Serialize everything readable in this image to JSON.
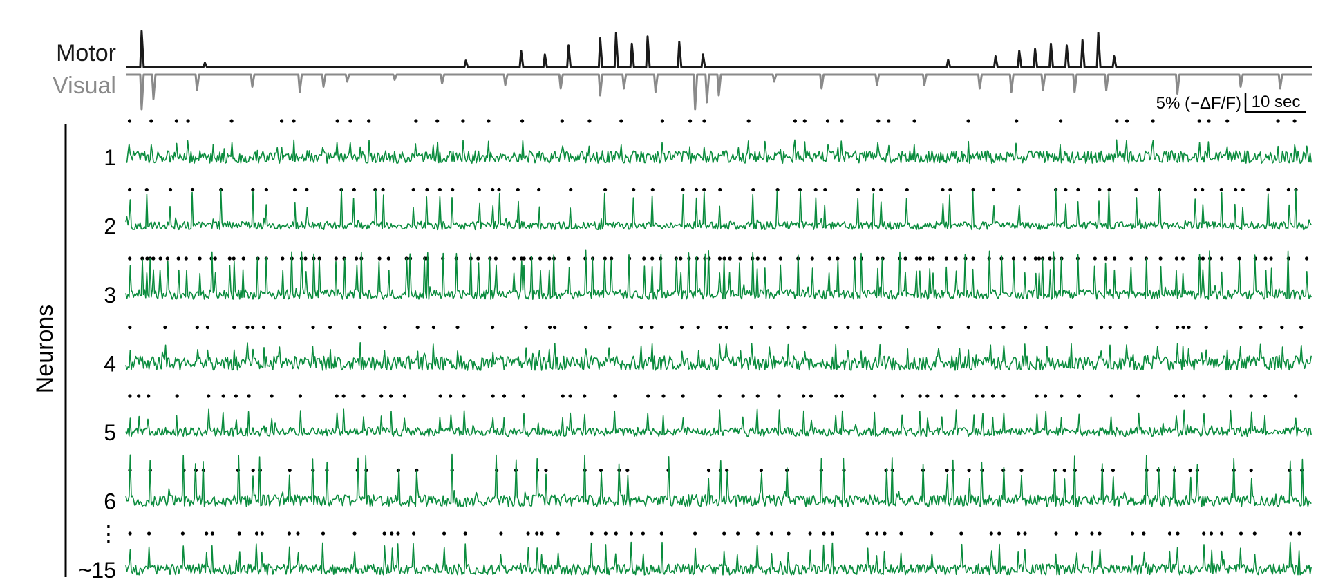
{
  "chart_data": {
    "type": "line",
    "behavior": {
      "motor": {
        "label": "Motor",
        "color": "#1a1a1a",
        "spikes": [
          {
            "t": 2,
            "a": 1.0
          },
          {
            "t": 10,
            "a": 0.12
          },
          {
            "t": 43,
            "a": 0.18
          },
          {
            "t": 50,
            "a": 0.45
          },
          {
            "t": 53,
            "a": 0.35
          },
          {
            "t": 56,
            "a": 0.6
          },
          {
            "t": 60,
            "a": 0.8
          },
          {
            "t": 62,
            "a": 0.95
          },
          {
            "t": 64,
            "a": 0.65
          },
          {
            "t": 66,
            "a": 0.85
          },
          {
            "t": 70,
            "a": 0.7
          },
          {
            "t": 73,
            "a": 0.35
          },
          {
            "t": 104,
            "a": 0.2
          },
          {
            "t": 110,
            "a": 0.3
          },
          {
            "t": 113,
            "a": 0.45
          },
          {
            "t": 115,
            "a": 0.5
          },
          {
            "t": 117,
            "a": 0.65
          },
          {
            "t": 119,
            "a": 0.6
          },
          {
            "t": 121,
            "a": 0.75
          },
          {
            "t": 123,
            "a": 0.95
          },
          {
            "t": 125,
            "a": 0.3
          }
        ]
      },
      "visual": {
        "label": "Visual",
        "color": "#8a8a8a",
        "deflections": [
          {
            "t": 2,
            "a": 1.0
          },
          {
            "t": 3.5,
            "a": 0.7
          },
          {
            "t": 9,
            "a": 0.45
          },
          {
            "t": 16,
            "a": 0.35
          },
          {
            "t": 22,
            "a": 0.5
          },
          {
            "t": 25,
            "a": 0.35
          },
          {
            "t": 28,
            "a": 0.2
          },
          {
            "t": 34,
            "a": 0.15
          },
          {
            "t": 40,
            "a": 0.25
          },
          {
            "t": 48,
            "a": 0.3
          },
          {
            "t": 55,
            "a": 0.4
          },
          {
            "t": 60,
            "a": 0.6
          },
          {
            "t": 63,
            "a": 0.4
          },
          {
            "t": 67,
            "a": 0.5
          },
          {
            "t": 72,
            "a": 1.0
          },
          {
            "t": 73.5,
            "a": 0.8
          },
          {
            "t": 75,
            "a": 0.6
          },
          {
            "t": 82,
            "a": 0.2
          },
          {
            "t": 88,
            "a": 0.4
          },
          {
            "t": 95,
            "a": 0.3
          },
          {
            "t": 101,
            "a": 0.3
          },
          {
            "t": 108,
            "a": 0.4
          },
          {
            "t": 112,
            "a": 0.5
          },
          {
            "t": 116,
            "a": 0.45
          },
          {
            "t": 120,
            "a": 0.5
          },
          {
            "t": 124,
            "a": 0.45
          },
          {
            "t": 133,
            "a": 0.55
          },
          {
            "t": 141,
            "a": 0.35
          },
          {
            "t": 146,
            "a": 0.4
          }
        ]
      }
    },
    "neurons": [
      {
        "label": "1",
        "seed": 11,
        "noise": 0.7,
        "spike_amp": 0.28,
        "event_rate": 38
      },
      {
        "label": "2",
        "seed": 23,
        "noise": 0.45,
        "spike_amp": 0.7,
        "event_rate": 58
      },
      {
        "label": "3",
        "seed": 37,
        "noise": 0.55,
        "spike_amp": 0.85,
        "event_rate": 120
      },
      {
        "label": "4",
        "seed": 41,
        "noise": 0.8,
        "spike_amp": 0.35,
        "event_rate": 62
      },
      {
        "label": "5",
        "seed": 53,
        "noise": 0.5,
        "spike_amp": 0.4,
        "event_rate": 52
      },
      {
        "label": "6",
        "seed": 67,
        "noise": 0.65,
        "spike_amp": 0.9,
        "event_rate": 48
      },
      {
        "label": "~15",
        "seed": 79,
        "noise": 0.6,
        "spike_amp": 0.5,
        "event_rate": 60
      }
    ],
    "ellipsis_label": "⋮",
    "neuron_color": "#0b8c3e",
    "event_dot_color": "#000000",
    "y_group_label": "Neurons",
    "scale_bar": {
      "y_label": "5% (−ΔF/F)",
      "y_value_percent": 5,
      "x_label": "10 sec",
      "x_value_sec": 10
    },
    "x_range_sec": [
      0,
      150
    ],
    "grid": false
  }
}
